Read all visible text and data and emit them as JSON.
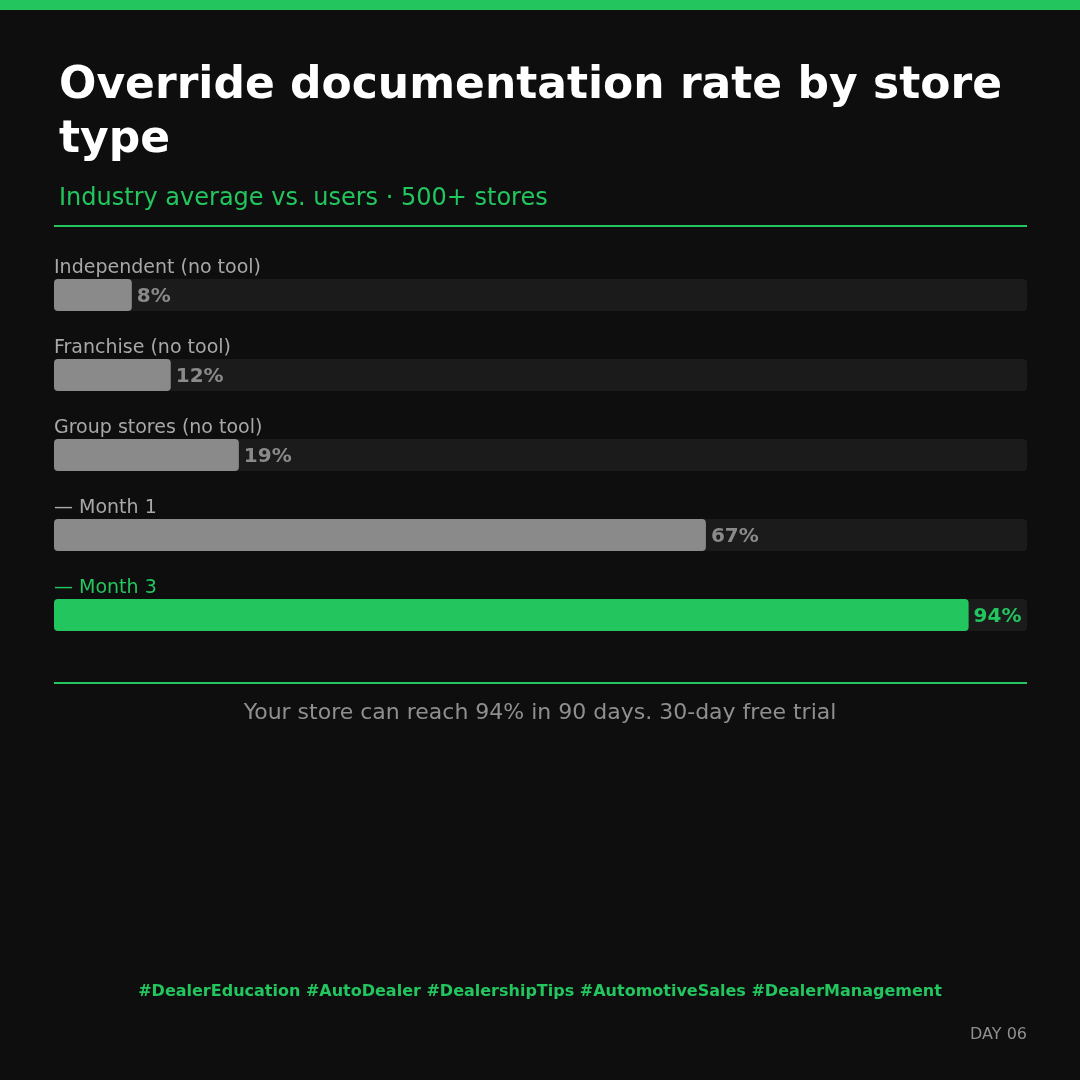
{
  "chart_data": {
    "type": "bar",
    "orientation": "horizontal",
    "title": "Override documentation rate by store type",
    "subtitle": "Industry average vs. users · 500+ stores",
    "categories": [
      "Independent (no tool)",
      "Franchise (no tool)",
      "Group stores (no tool)",
      "— Month 1",
      "— Month 3"
    ],
    "values": [
      8,
      12,
      19,
      67,
      94
    ],
    "value_labels": [
      "8%",
      "12%",
      "19%",
      "67%",
      "94%"
    ],
    "colors": [
      "#8a8a8a",
      "#8a8a8a",
      "#8a8a8a",
      "#8a8a8a",
      "#22c55e"
    ],
    "xlim": [
      0,
      100
    ],
    "annotations": [
      "Your store can reach 94% in 90 days. 30-day free trial",
      "#DealerEducation #AutoDealer #DealershipTips #AutomotiveSales #DealerManagement",
      "DAY 06"
    ]
  }
}
